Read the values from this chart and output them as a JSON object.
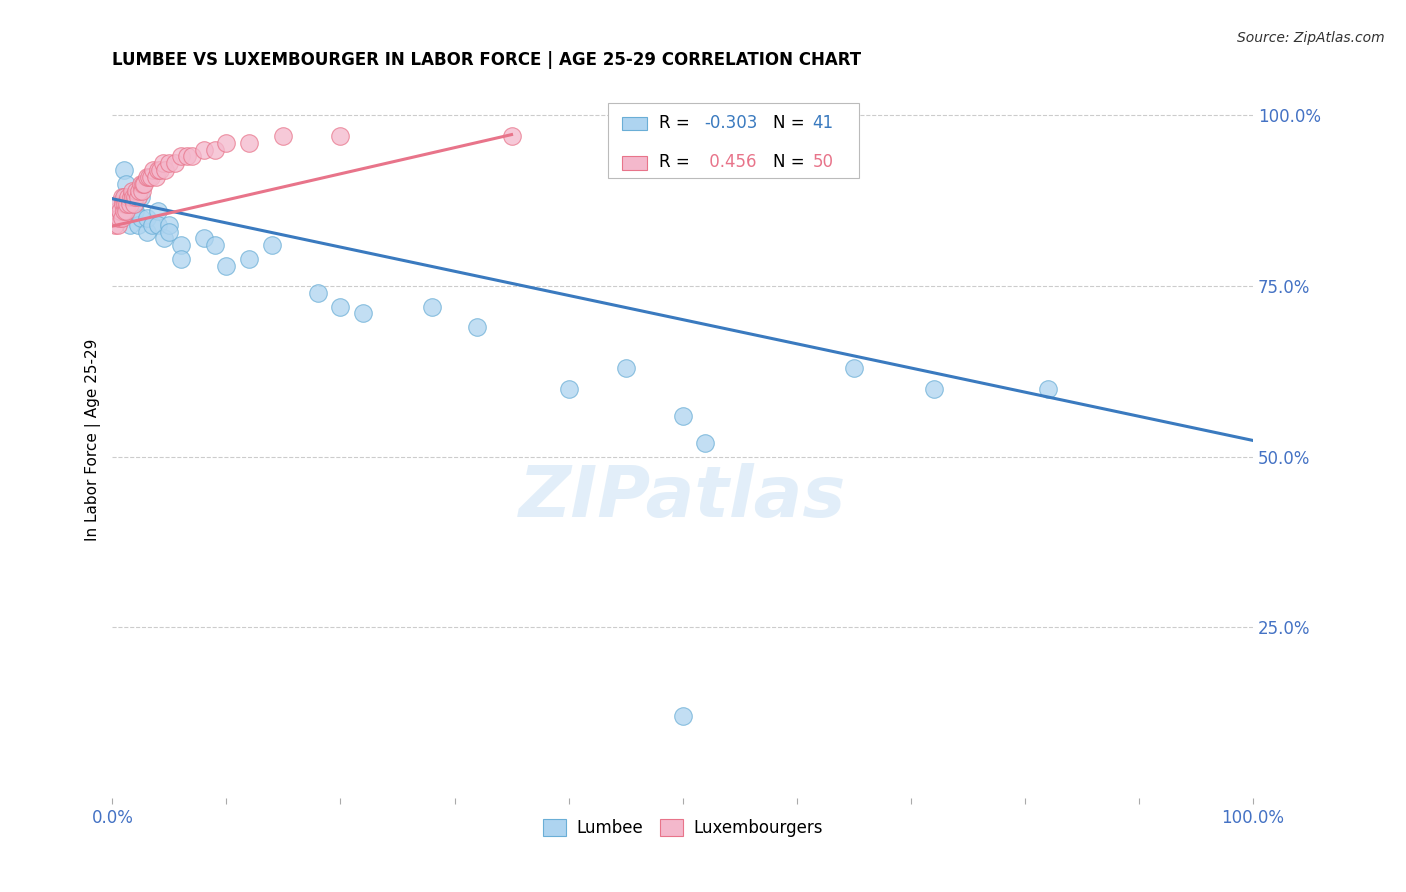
{
  "title": "LUMBEE VS LUXEMBOURGER IN LABOR FORCE | AGE 25-29 CORRELATION CHART",
  "source": "Source: ZipAtlas.com",
  "ylabel": "In Labor Force | Age 25-29",
  "legend_r_lumbee": "-0.303",
  "legend_n_lumbee": "41",
  "legend_r_luxembourger": "0.456",
  "legend_n_luxembourger": "50",
  "lumbee_color": "#aed4f0",
  "luxembourger_color": "#f4b8cc",
  "lumbee_edge_color": "#6aaed6",
  "luxembourger_edge_color": "#e8748a",
  "lumbee_line_color": "#3a7abf",
  "luxembourger_line_color": "#e8748a",
  "lumbee_x": [
    0.005,
    0.008,
    0.01,
    0.01,
    0.012,
    0.015,
    0.015,
    0.018,
    0.02,
    0.02,
    0.022,
    0.025,
    0.025,
    0.03,
    0.03,
    0.035,
    0.04,
    0.04,
    0.045,
    0.05,
    0.05,
    0.06,
    0.06,
    0.08,
    0.09,
    0.1,
    0.12,
    0.14,
    0.18,
    0.2,
    0.22,
    0.28,
    0.32,
    0.4,
    0.45,
    0.5,
    0.52,
    0.65,
    0.72,
    0.82,
    0.5
  ],
  "lumbee_y": [
    0.87,
    0.86,
    0.92,
    0.88,
    0.9,
    0.84,
    0.87,
    0.88,
    0.87,
    0.86,
    0.84,
    0.88,
    0.85,
    0.83,
    0.85,
    0.84,
    0.86,
    0.84,
    0.82,
    0.84,
    0.83,
    0.81,
    0.79,
    0.82,
    0.81,
    0.78,
    0.79,
    0.81,
    0.74,
    0.72,
    0.71,
    0.72,
    0.69,
    0.6,
    0.63,
    0.56,
    0.52,
    0.63,
    0.6,
    0.6,
    0.12
  ],
  "luxembourger_x": [
    0.002,
    0.003,
    0.004,
    0.005,
    0.005,
    0.006,
    0.007,
    0.008,
    0.008,
    0.009,
    0.01,
    0.01,
    0.011,
    0.012,
    0.013,
    0.014,
    0.015,
    0.016,
    0.017,
    0.018,
    0.019,
    0.02,
    0.021,
    0.022,
    0.023,
    0.025,
    0.026,
    0.027,
    0.028,
    0.03,
    0.032,
    0.034,
    0.036,
    0.038,
    0.04,
    0.042,
    0.044,
    0.046,
    0.05,
    0.055,
    0.06,
    0.065,
    0.07,
    0.08,
    0.09,
    0.1,
    0.12,
    0.15,
    0.2,
    0.35
  ],
  "luxembourger_y": [
    0.84,
    0.85,
    0.86,
    0.84,
    0.87,
    0.85,
    0.86,
    0.85,
    0.88,
    0.87,
    0.86,
    0.88,
    0.87,
    0.86,
    0.87,
    0.88,
    0.87,
    0.88,
    0.89,
    0.88,
    0.87,
    0.88,
    0.89,
    0.88,
    0.89,
    0.9,
    0.89,
    0.9,
    0.9,
    0.91,
    0.91,
    0.91,
    0.92,
    0.91,
    0.92,
    0.92,
    0.93,
    0.92,
    0.93,
    0.93,
    0.94,
    0.94,
    0.94,
    0.95,
    0.95,
    0.96,
    0.96,
    0.97,
    0.97,
    0.97
  ],
  "lumbee_line_x0": 0.0,
  "lumbee_line_x1": 1.0,
  "lumbee_line_y0": 0.878,
  "lumbee_line_y1": 0.524,
  "luxembourger_line_x0": 0.0,
  "luxembourger_line_x1": 0.35,
  "luxembourger_line_y0": 0.838,
  "luxembourger_line_y1": 0.972,
  "xlim": [
    0.0,
    1.0
  ],
  "ylim": [
    0.0,
    1.05
  ],
  "yticks": [
    0.25,
    0.5,
    0.75,
    1.0
  ],
  "ytick_labels": [
    "25.0%",
    "50.0%",
    "75.0%",
    "100.0%"
  ],
  "xticks": [
    0.0,
    0.1,
    0.2,
    0.3,
    0.4,
    0.5,
    0.6,
    0.7,
    0.8,
    0.9,
    1.0
  ],
  "watermark_text": "ZIPatlas",
  "background_color": "#ffffff",
  "tick_color": "#4472c4",
  "grid_color": "#cccccc",
  "title_fontsize": 12,
  "tick_fontsize": 12,
  "source_fontsize": 10
}
